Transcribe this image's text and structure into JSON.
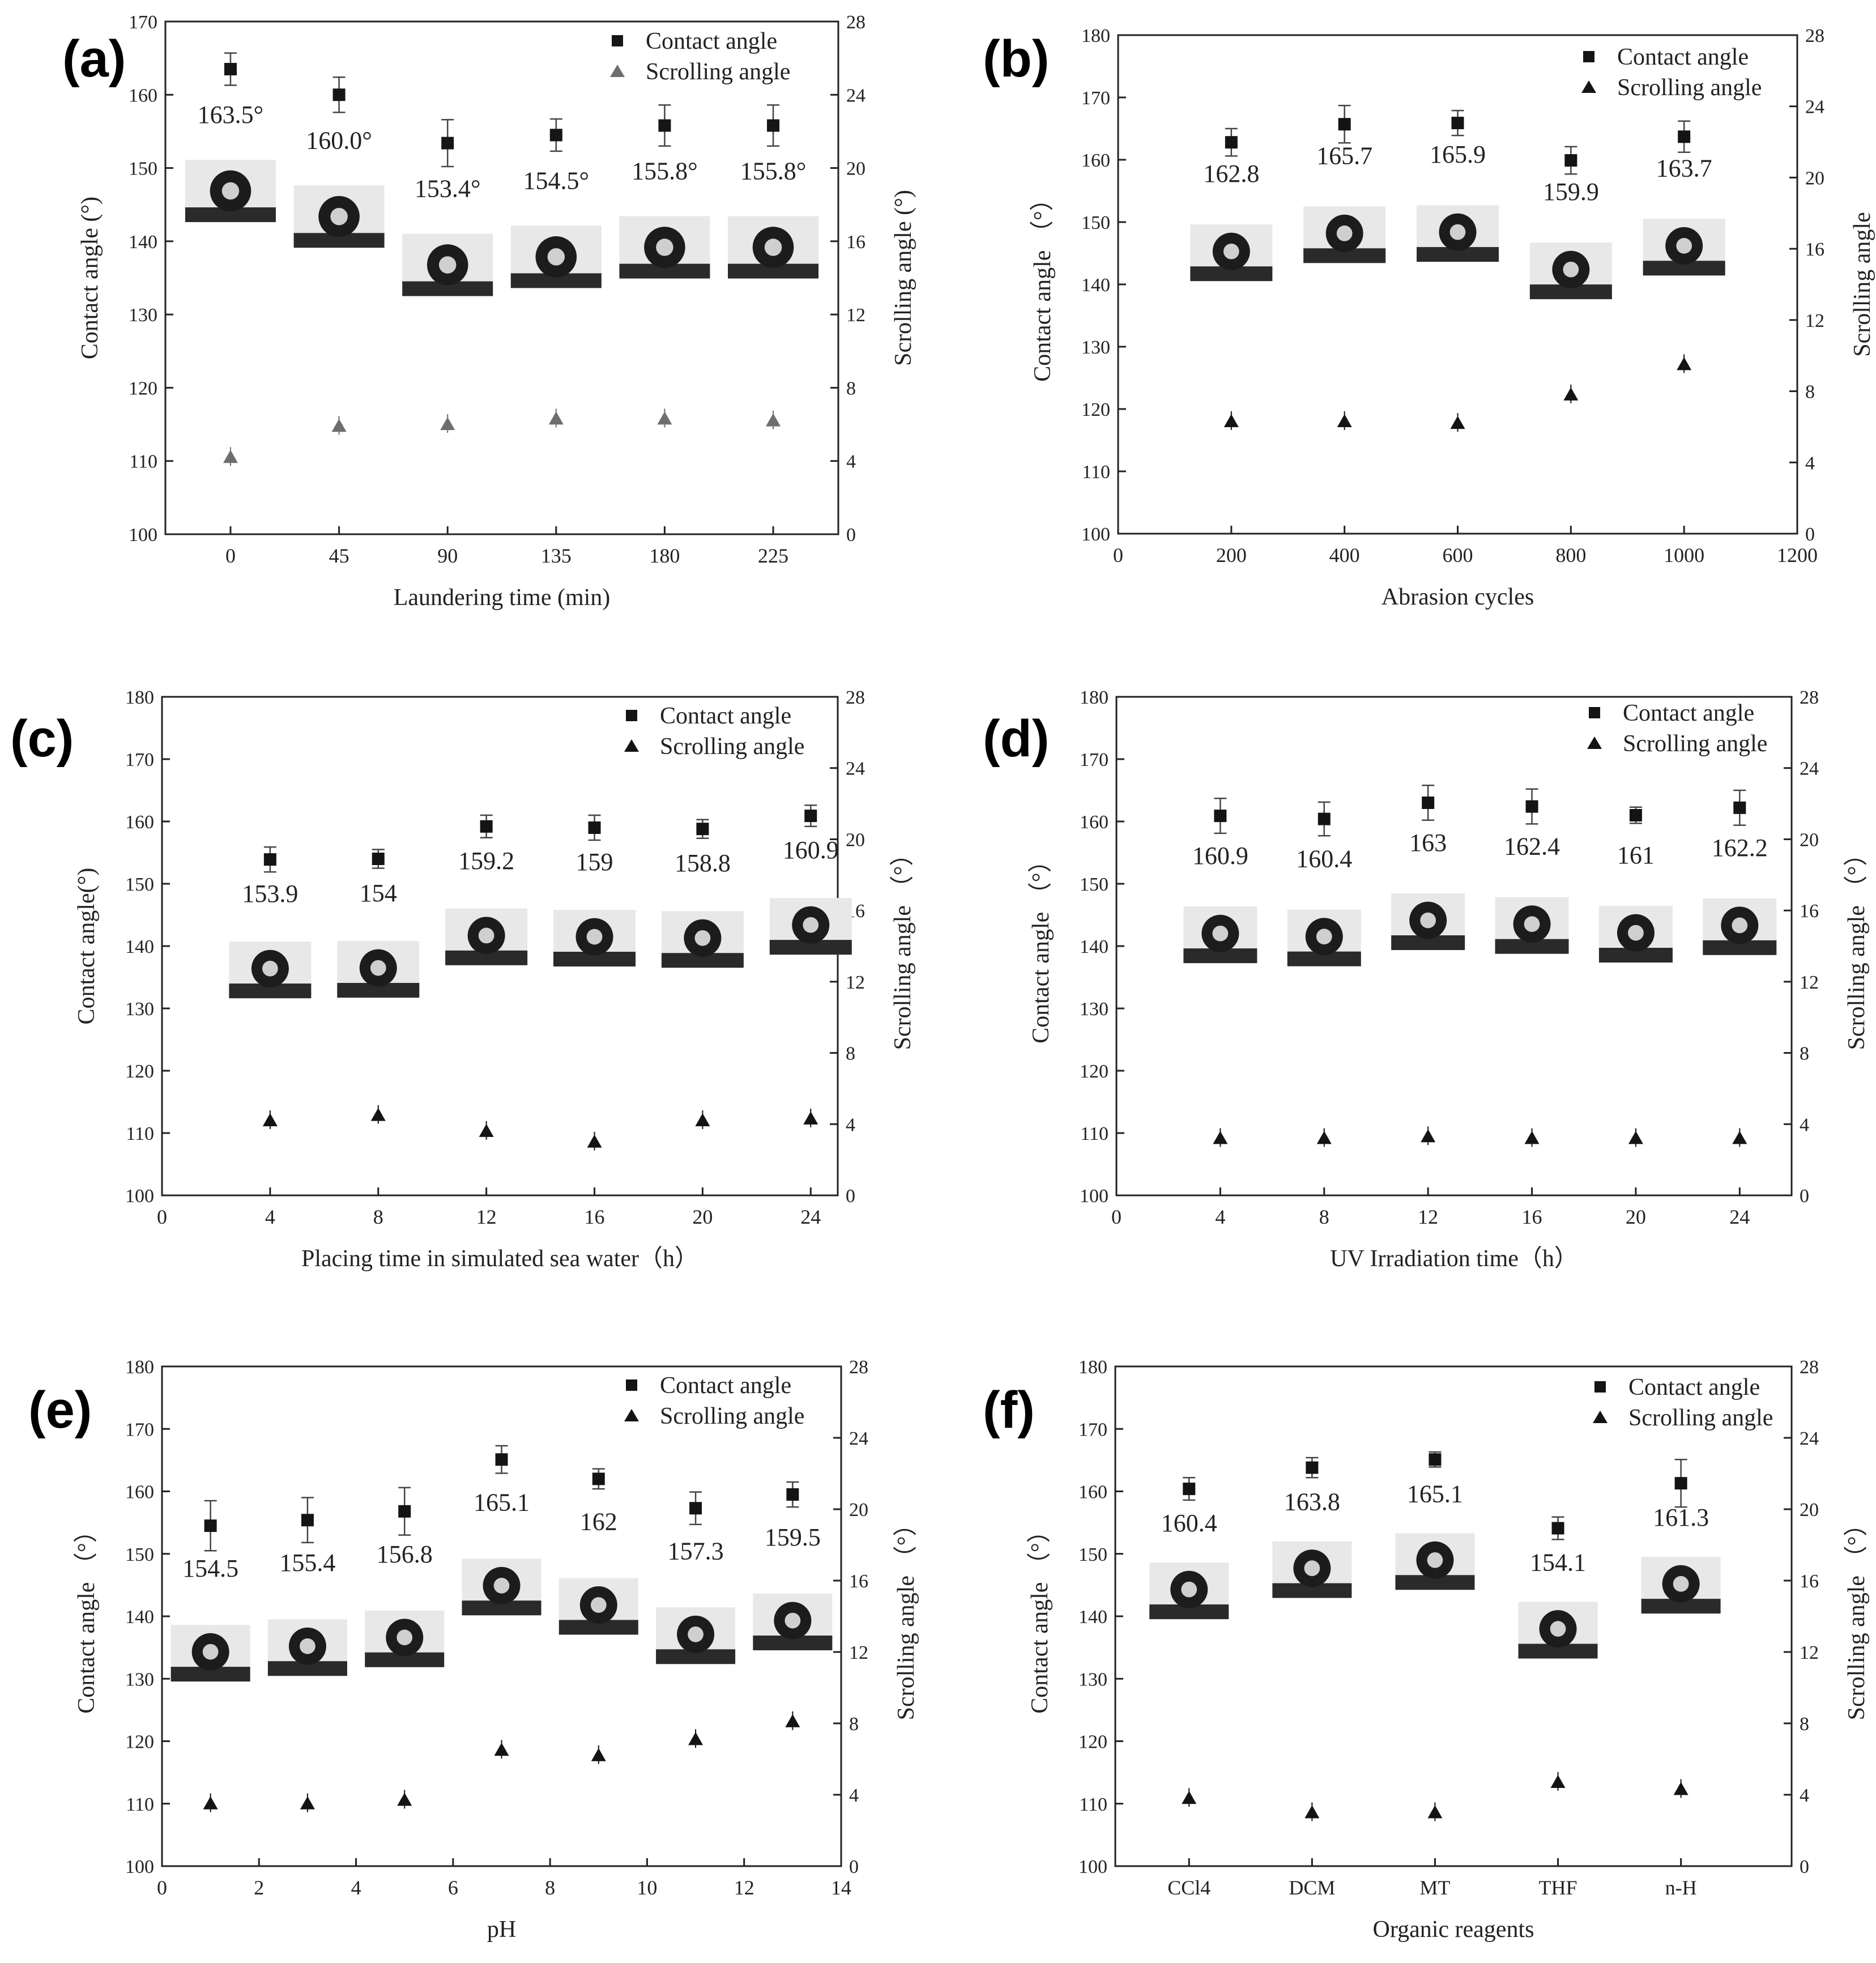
{
  "figure": {
    "colors": {
      "axis": "#222222",
      "marker_a": "#161616",
      "scroll_a": "#6e6e6e",
      "marker": "#141414"
    }
  },
  "chart_data": [
    {
      "panel": "(a)",
      "type": "scatter",
      "xlabel": "Laundering time (min)",
      "ylabel": "Contact angle (°)",
      "y2label": "Scrolling angle (°)",
      "xlim": [
        -0.6,
        5.6
      ],
      "ylim": [
        100,
        170
      ],
      "y2lim": [
        0,
        28
      ],
      "categorical": true,
      "xticks": [
        "0",
        "45",
        "90",
        "135",
        "180",
        "225"
      ],
      "yticks": [
        100,
        110,
        120,
        130,
        140,
        150,
        160,
        170
      ],
      "y2ticks": [
        0,
        4,
        8,
        12,
        16,
        20,
        24,
        28
      ],
      "contact": {
        "x": [
          0,
          1,
          2,
          3,
          4,
          5
        ],
        "values": [
          163.5,
          160.0,
          153.4,
          154.5,
          155.8,
          155.8
        ],
        "errors": [
          2.2,
          2.4,
          3.2,
          2.2,
          2.8,
          2.8
        ]
      },
      "scroll": {
        "x": [
          0,
          1,
          2,
          3,
          4,
          5
        ],
        "values": [
          4.2,
          5.9,
          6.0,
          6.3,
          6.3,
          6.2
        ]
      },
      "labels": [
        "163.5°",
        "160.0°",
        "153.4°",
        "154.5°",
        "155.8°",
        "155.8°"
      ],
      "legend": [
        "Contact angle",
        "Scrolling angle"
      ]
    },
    {
      "panel": "(b)",
      "type": "scatter",
      "xlabel": "Abrasion cycles",
      "ylabel": "Contact angle （°）",
      "y2label": "Scrolling angle",
      "xlim": [
        0,
        1200
      ],
      "ylim": [
        100,
        180
      ],
      "y2lim": [
        0,
        28
      ],
      "xticks": [
        0,
        200,
        400,
        600,
        800,
        1000,
        1200
      ],
      "yticks": [
        100,
        110,
        120,
        130,
        140,
        150,
        160,
        170,
        180
      ],
      "y2ticks": [
        0,
        4,
        8,
        12,
        16,
        20,
        24,
        28
      ],
      "contact": {
        "x": [
          200,
          400,
          600,
          800,
          1000
        ],
        "values": [
          162.8,
          165.7,
          165.9,
          159.9,
          163.7
        ],
        "errors": [
          2.2,
          3.0,
          2.0,
          2.2,
          2.5
        ]
      },
      "scroll": {
        "x": [
          200,
          400,
          600,
          800,
          1000
        ],
        "values": [
          6.3,
          6.3,
          6.2,
          7.8,
          9.5
        ]
      },
      "labels": [
        "162.8",
        "165.7",
        "165.9",
        "159.9",
        "163.7"
      ],
      "legend": [
        "Contact angle",
        "Scrolling angle"
      ]
    },
    {
      "panel": "(c)",
      "type": "scatter",
      "xlabel": "Placing time in simulated sea water（h）",
      "ylabel": "Contact angle(°)",
      "y2label": "Scrolling angle （°）",
      "xlim": [
        0,
        25
      ],
      "ylim": [
        100,
        180
      ],
      "y2lim": [
        0,
        28
      ],
      "xticks": [
        0,
        4,
        8,
        12,
        16,
        20,
        24
      ],
      "yticks": [
        100,
        110,
        120,
        130,
        140,
        150,
        160,
        170,
        180
      ],
      "y2ticks": [
        0,
        4,
        8,
        12,
        16,
        20,
        24,
        28
      ],
      "contact": {
        "x": [
          4,
          8,
          12,
          16,
          20,
          24
        ],
        "values": [
          153.9,
          154.0,
          159.2,
          159.0,
          158.8,
          160.9
        ],
        "errors": [
          2.0,
          1.5,
          1.8,
          2.0,
          1.5,
          1.7
        ]
      },
      "scroll": {
        "x": [
          4,
          8,
          12,
          16,
          20,
          24
        ],
        "values": [
          4.2,
          4.5,
          3.6,
          3.0,
          4.2,
          4.3
        ]
      },
      "labels": [
        "153.9",
        "154",
        "159.2",
        "159",
        "158.8",
        "160.9"
      ],
      "legend": [
        "Contact angle",
        "Scrolling angle"
      ]
    },
    {
      "panel": "(d)",
      "type": "scatter",
      "xlabel": "UV Irradiation time（h）",
      "ylabel": "Contact angle （°）",
      "y2label": "Scrolling angle （°）",
      "xlim": [
        0,
        26
      ],
      "ylim": [
        100,
        180
      ],
      "y2lim": [
        0,
        28
      ],
      "xticks": [
        0,
        4,
        8,
        12,
        16,
        20,
        24
      ],
      "yticks": [
        100,
        110,
        120,
        130,
        140,
        150,
        160,
        170,
        180
      ],
      "y2ticks": [
        0,
        4,
        8,
        12,
        16,
        20,
        24,
        28
      ],
      "contact": {
        "x": [
          4,
          8,
          12,
          16,
          20,
          24
        ],
        "values": [
          160.9,
          160.4,
          163.0,
          162.4,
          161.0,
          162.2
        ],
        "errors": [
          2.8,
          2.7,
          2.8,
          2.8,
          1.3,
          2.8
        ]
      },
      "scroll": {
        "x": [
          4,
          8,
          12,
          16,
          20,
          24
        ],
        "values": [
          3.2,
          3.2,
          3.3,
          3.2,
          3.2,
          3.2
        ]
      },
      "labels": [
        "160.9",
        "160.4",
        "163",
        "162.4",
        "161",
        "162.2"
      ],
      "legend": [
        "Contact angle",
        "Scrolling angle"
      ]
    },
    {
      "panel": "(e)",
      "type": "scatter",
      "xlabel": "pH",
      "ylabel": "Contact angle （°）",
      "y2label": "Scrolling angle （°）",
      "xlim": [
        0,
        14
      ],
      "ylim": [
        100,
        180
      ],
      "y2lim": [
        0,
        28
      ],
      "xticks": [
        0,
        2,
        4,
        6,
        8,
        10,
        12,
        14
      ],
      "yticks": [
        100,
        110,
        120,
        130,
        140,
        150,
        160,
        170,
        180
      ],
      "y2ticks": [
        0,
        4,
        8,
        12,
        16,
        20,
        24,
        28
      ],
      "contact": {
        "x": [
          1,
          3,
          5,
          7,
          9,
          11,
          13
        ],
        "values": [
          154.5,
          155.4,
          156.8,
          165.1,
          162.0,
          157.3,
          159.5
        ],
        "errors": [
          4.0,
          3.6,
          3.8,
          2.2,
          1.6,
          2.6,
          2.0
        ]
      },
      "scroll": {
        "x": [
          1,
          3,
          5,
          7,
          9,
          11,
          13
        ],
        "values": [
          3.5,
          3.5,
          3.7,
          6.5,
          6.2,
          7.1,
          8.1
        ]
      },
      "labels": [
        "154.5",
        "155.4",
        "156.8",
        "165.1",
        "162",
        "157.3",
        "159.5"
      ],
      "legend": [
        "Contact angle",
        "Scrolling angle"
      ]
    },
    {
      "panel": "(f)",
      "type": "scatter",
      "xlabel": "Organic reagents",
      "ylabel": "Contact angle （°）",
      "y2label": "Scrolling angle （°）",
      "xlim": [
        -0.6,
        4.9
      ],
      "ylim": [
        100,
        180
      ],
      "y2lim": [
        0,
        28
      ],
      "categorical": true,
      "xticks": [
        "CCl4",
        "DCM",
        "MT",
        "THF",
        "n-H"
      ],
      "yticks": [
        100,
        110,
        120,
        130,
        140,
        150,
        160,
        170,
        180
      ],
      "y2ticks": [
        0,
        4,
        8,
        12,
        16,
        20,
        24,
        28
      ],
      "contact": {
        "x": [
          0,
          1,
          2,
          3,
          4
        ],
        "values": [
          160.4,
          163.8,
          165.1,
          154.1,
          161.3
        ],
        "errors": [
          1.8,
          1.6,
          1.2,
          1.8,
          3.8
        ]
      },
      "scroll": {
        "x": [
          0,
          1,
          2,
          3,
          4
        ],
        "values": [
          3.8,
          3.0,
          3.0,
          4.7,
          4.3
        ]
      },
      "labels": [
        "160.4",
        "163.8",
        "165.1",
        "154.1",
        "161.3"
      ],
      "legend": [
        "Contact angle",
        "Scrolling angle"
      ]
    }
  ]
}
